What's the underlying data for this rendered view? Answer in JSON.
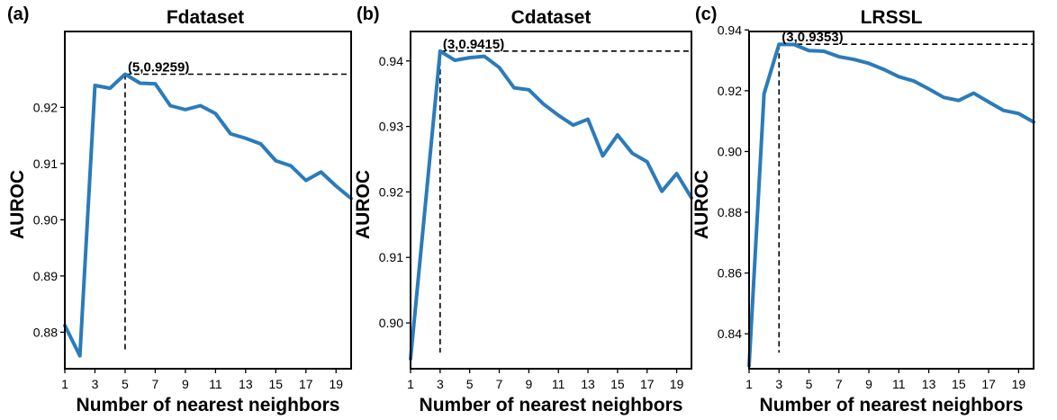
{
  "chart_data": [
    {
      "type": "line",
      "panel_label": "(a)",
      "title": "Fdataset",
      "xlabel": "Number of nearest neighbors",
      "ylabel": "AUROC",
      "x": [
        1,
        2,
        3,
        4,
        5,
        6,
        7,
        8,
        9,
        10,
        11,
        12,
        13,
        14,
        15,
        16,
        17,
        18,
        19,
        20
      ],
      "series": [
        {
          "values": [
            0.8812,
            0.8758,
            0.9239,
            0.9234,
            0.9259,
            0.9243,
            0.9242,
            0.9203,
            0.9196,
            0.9203,
            0.9189,
            0.9153,
            0.9145,
            0.9135,
            0.9105,
            0.9096,
            0.907,
            0.9085,
            0.906,
            0.9038
          ]
        }
      ],
      "xlim": [
        1,
        20
      ],
      "ylim": [
        0.8735,
        0.9335
      ],
      "xticks": [
        1,
        3,
        5,
        7,
        9,
        11,
        13,
        15,
        17,
        19
      ],
      "yticks": [
        0.88,
        0.89,
        0.9,
        0.91,
        0.92
      ],
      "ytick_labels": [
        "0.88",
        "0.89",
        "0.90",
        "0.91",
        "0.92"
      ],
      "highlight": {
        "x": 5,
        "y": 0.9259,
        "label": "(5,0.9259)"
      },
      "line_color": "#2b7bba",
      "grid": false
    },
    {
      "type": "line",
      "panel_label": "(b)",
      "title": "Cdataset",
      "xlabel": "Number of nearest neighbors",
      "ylabel": "AUROC",
      "x": [
        1,
        2,
        3,
        4,
        5,
        6,
        7,
        8,
        9,
        10,
        11,
        12,
        13,
        14,
        15,
        16,
        17,
        18,
        19,
        20
      ],
      "series": [
        {
          "values": [
            0.8945,
            0.918,
            0.9415,
            0.9401,
            0.9405,
            0.9407,
            0.939,
            0.9359,
            0.9356,
            0.9334,
            0.9317,
            0.9302,
            0.9311,
            0.9255,
            0.9287,
            0.9259,
            0.9246,
            0.9201,
            0.9228,
            0.9191
          ]
        }
      ],
      "xlim": [
        1,
        20
      ],
      "ylim": [
        0.893,
        0.9445
      ],
      "xticks": [
        1,
        3,
        5,
        7,
        9,
        11,
        13,
        15,
        17,
        19
      ],
      "yticks": [
        0.9,
        0.91,
        0.92,
        0.93,
        0.94
      ],
      "ytick_labels": [
        "0.90",
        "0.91",
        "0.92",
        "0.93",
        "0.94"
      ],
      "highlight": {
        "x": 3,
        "y": 0.9415,
        "label": "(3,0.9415)"
      },
      "line_color": "#2b7bba",
      "grid": false
    },
    {
      "type": "line",
      "panel_label": "(c)",
      "title": "LRSSL",
      "xlabel": "Number of nearest neighbors",
      "ylabel": "AUROC",
      "x": [
        1,
        2,
        3,
        4,
        5,
        6,
        7,
        8,
        9,
        10,
        11,
        12,
        13,
        14,
        15,
        16,
        17,
        18,
        19,
        20
      ],
      "series": [
        {
          "values": [
            0.8295,
            0.919,
            0.9353,
            0.9352,
            0.9332,
            0.933,
            0.9312,
            0.9303,
            0.929,
            0.927,
            0.9246,
            0.9232,
            0.9206,
            0.9178,
            0.9168,
            0.9192,
            0.9163,
            0.9135,
            0.9125,
            0.9097
          ]
        }
      ],
      "xlim": [
        1,
        20
      ],
      "ylim": [
        0.8285,
        0.9395
      ],
      "xticks": [
        1,
        3,
        5,
        7,
        9,
        11,
        13,
        15,
        17,
        19
      ],
      "yticks": [
        0.84,
        0.86,
        0.88,
        0.9,
        0.92,
        0.94
      ],
      "ytick_labels": [
        "0.84",
        "0.86",
        "0.88",
        "0.90",
        "0.92",
        "0.94"
      ],
      "highlight": {
        "x": 3,
        "y": 0.9353,
        "label": "(3,0.9353)"
      },
      "line_color": "#2b7bba",
      "grid": false
    }
  ]
}
